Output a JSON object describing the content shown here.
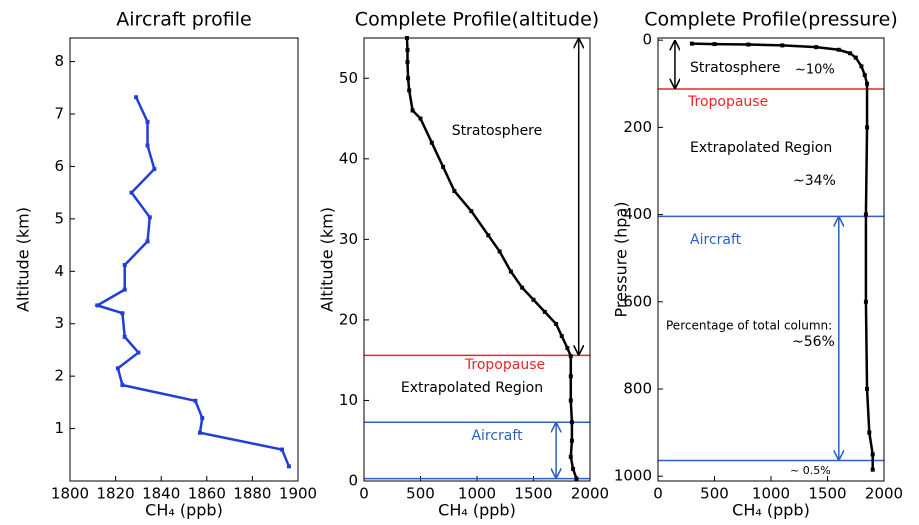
{
  "chart_data": [
    {
      "type": "line",
      "title": "Aircraft profile",
      "x_label": "CH₄ (ppb)",
      "y_label": "Altitude (km)",
      "xlim": [
        1800,
        1900
      ],
      "xticks": [
        1800,
        1820,
        1840,
        1860,
        1880,
        1900
      ],
      "ylim": [
        0,
        8.45
      ],
      "yticks": [
        1,
        2,
        3,
        4,
        5,
        6,
        7,
        8
      ],
      "series": [
        {
          "color": "#1f3fd6",
          "x": [
            1829,
            1834,
            1834,
            1837,
            1827,
            1835,
            1834,
            1824,
            1824,
            1812,
            1823,
            1824,
            1830,
            1821,
            1823,
            1855,
            1858,
            1857,
            1893,
            1896
          ],
          "values": [
            7.32,
            6.85,
            6.4,
            5.95,
            5.5,
            5.03,
            4.57,
            4.12,
            3.65,
            3.35,
            3.2,
            2.75,
            2.45,
            2.15,
            1.83,
            1.53,
            1.2,
            0.92,
            0.6,
            0.28
          ]
        }
      ],
      "hlines": [],
      "arrows": [],
      "annotations": []
    },
    {
      "type": "line",
      "title": "Complete Profile(altitude)",
      "x_label": "CH₄ (ppb)",
      "y_label": "Altitude (km)",
      "xlim": [
        0,
        2000
      ],
      "xticks": [
        0,
        500,
        1000,
        1500,
        2000
      ],
      "ylim": [
        0,
        55
      ],
      "yticks": [
        0,
        10,
        20,
        30,
        40,
        50
      ],
      "series": [
        {
          "color": "#000000",
          "x": [
            380,
            385,
            385,
            390,
            400,
            430,
            500,
            600,
            700,
            800,
            950,
            1100,
            1200,
            1300,
            1400,
            1500,
            1600,
            1700,
            1750,
            1800,
            1830,
            1830,
            1830,
            1840,
            1840,
            1830,
            1850,
            1880
          ],
          "values": [
            55,
            53.5,
            52,
            50,
            48.5,
            46,
            45,
            42,
            39,
            36,
            33.5,
            30.5,
            28.5,
            26,
            24,
            22.5,
            21,
            19.5,
            18,
            16.5,
            15.5,
            13,
            10,
            7.3,
            5,
            3,
            1.5,
            0.3
          ]
        }
      ],
      "hlines": [
        {
          "value": 15.6,
          "color": "#e8262a"
        },
        {
          "value": 7.3,
          "color": "#2f5fc4"
        },
        {
          "value": 0.3,
          "color": "#2f5fc4"
        }
      ],
      "arrows": [
        {
          "x": 1900,
          "y": [
            55,
            15.6
          ],
          "color": "#000000"
        },
        {
          "x": 1700,
          "y": [
            7.3,
            0.3
          ],
          "color": "#2f5fc4"
        }
      ],
      "annotations": [
        {
          "text": "Stratosphere",
          "color": "#000000"
        },
        {
          "text": "Tropopause",
          "color": "#e8262a"
        },
        {
          "text": "Extrapolated Region",
          "color": "#000000"
        },
        {
          "text": "Aircraft",
          "color": "#2f5fc4"
        }
      ]
    },
    {
      "type": "line",
      "title": "Complete Profile(pressure)",
      "x_label": "CH₄ (ppb)",
      "y_label": "Pressure (hpa)",
      "xlim": [
        0,
        2000
      ],
      "xticks": [
        0,
        500,
        1000,
        1500,
        2000
      ],
      "ylim": [
        1011,
        -5
      ],
      "yticks": [
        0,
        200,
        400,
        600,
        800,
        1000
      ],
      "series": [
        {
          "color": "#000000",
          "x": [
            300,
            500,
            800,
            1100,
            1400,
            1600,
            1700,
            1750,
            1800,
            1830,
            1850,
            1850,
            1840,
            1840,
            1850,
            1870,
            1900,
            1900
          ],
          "values": [
            8,
            9,
            10,
            12,
            16,
            22,
            30,
            40,
            60,
            80,
            100,
            200,
            400,
            600,
            800,
            900,
            950,
            985
          ]
        }
      ],
      "hlines": [
        {
          "value": 112,
          "color": "#e8262a"
        },
        {
          "value": 404,
          "color": "#2f5fc4"
        },
        {
          "value": 964,
          "color": "#2f5fc4"
        }
      ],
      "arrows": [
        {
          "x": 150,
          "y": [
            0,
            112
          ],
          "color": "#000000"
        },
        {
          "x": 1600,
          "y": [
            404,
            964
          ],
          "color": "#2f5fc4"
        }
      ],
      "annotations": [
        {
          "text": "Stratosphere",
          "color": "#000000"
        },
        {
          "text": "~10%",
          "color": "#000000"
        },
        {
          "text": "Tropopause",
          "color": "#e8262a"
        },
        {
          "text": "Extrapolated Region",
          "color": "#000000"
        },
        {
          "text": "~34%",
          "color": "#000000"
        },
        {
          "text": "Aircraft",
          "color": "#2f5fc4"
        },
        {
          "text": "Percentage of total column:",
          "color": "#000000"
        },
        {
          "text": "~56%",
          "color": "#000000"
        },
        {
          "text": "~ 0.5%",
          "color": "#000000"
        }
      ]
    }
  ]
}
